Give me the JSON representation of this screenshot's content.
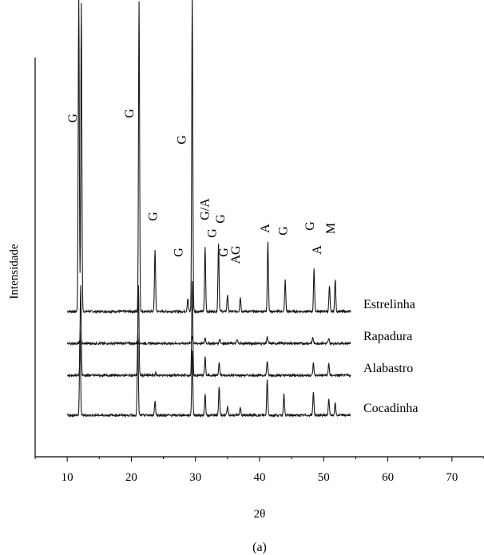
{
  "chart_data": {
    "type": "line",
    "caption": "(a)",
    "xlabel": "2θ",
    "ylabel": "Intensidade",
    "xlim": [
      5,
      75
    ],
    "xticks": [
      10,
      20,
      30,
      40,
      50,
      60,
      70
    ],
    "y_ticks_shown": false,
    "colors": {
      "line": "#1a1a1a",
      "axis": "#000000"
    },
    "series": [
      {
        "name": "Estrelinha",
        "offset": 260,
        "peaks": [
          [
            11.8,
            2.65
          ],
          [
            12.2,
            2.58
          ],
          [
            21.2,
            2.59
          ],
          [
            29.5,
            2.66
          ],
          [
            23.7,
            0.52
          ],
          [
            31.5,
            0.54
          ],
          [
            33.6,
            0.57
          ],
          [
            41.3,
            0.58
          ],
          [
            48.5,
            0.35
          ],
          [
            50.9,
            0.21
          ],
          [
            51.8,
            0.27
          ],
          [
            44.0,
            0.26
          ],
          [
            35.0,
            0.14
          ],
          [
            37.0,
            0.12
          ],
          [
            28.8,
            0.11
          ]
        ]
      },
      {
        "name": "Rapadura",
        "offset": 180,
        "peaks": [
          [
            12.0,
            0.02
          ],
          [
            21.0,
            0.03
          ],
          [
            29.5,
            0.06
          ],
          [
            31.5,
            0.05
          ],
          [
            33.8,
            0.04
          ],
          [
            36.5,
            0.03
          ],
          [
            41.2,
            0.05
          ],
          [
            48.3,
            0.05
          ],
          [
            50.8,
            0.04
          ]
        ]
      },
      {
        "name": "Alabastro",
        "offset": 100,
        "peaks": [
          [
            12.1,
            0.75
          ],
          [
            21.1,
            0.75
          ],
          [
            29.5,
            0.78
          ],
          [
            23.8,
            0.02
          ],
          [
            31.5,
            0.15
          ],
          [
            33.7,
            0.1
          ],
          [
            41.2,
            0.12
          ],
          [
            48.4,
            0.1
          ],
          [
            50.8,
            0.1
          ]
        ]
      },
      {
        "name": "Cocadinha",
        "offset": 0,
        "peaks": [
          [
            12.0,
            0.7
          ],
          [
            21.0,
            0.68
          ],
          [
            23.7,
            0.12
          ],
          [
            29.5,
            0.54
          ],
          [
            31.5,
            0.18
          ],
          [
            33.7,
            0.24
          ],
          [
            35.0,
            0.07
          ],
          [
            37.0,
            0.07
          ],
          [
            41.2,
            0.3
          ],
          [
            43.8,
            0.18
          ],
          [
            48.4,
            0.2
          ],
          [
            50.8,
            0.14
          ],
          [
            51.8,
            0.1
          ]
        ]
      }
    ],
    "annotations": [
      {
        "text": "G",
        "x": 11.5,
        "y": 620,
        "rotate": true
      },
      {
        "text": "G",
        "x": 20.3,
        "y": 630,
        "rotate": true
      },
      {
        "text": "G",
        "x": 28.5,
        "y": 575,
        "rotate": true
      },
      {
        "text": "G",
        "x": 24.0,
        "y": 415,
        "rotate": true
      },
      {
        "text": "G",
        "x": 28.0,
        "y": 340,
        "rotate": true
      },
      {
        "text": "G/A",
        "x": 32.1,
        "y": 430,
        "rotate": true
      },
      {
        "text": "G",
        "x": 34.5,
        "y": 410,
        "rotate": true
      },
      {
        "text": "G",
        "x": 33.2,
        "y": 380,
        "rotate": true
      },
      {
        "text": "G",
        "x": 35.0,
        "y": 340,
        "rotate": true
      },
      {
        "text": "AG",
        "x": 36.9,
        "y": 335,
        "rotate": true
      },
      {
        "text": "A",
        "x": 41.5,
        "y": 390,
        "rotate": true
      },
      {
        "text": "G",
        "x": 44.3,
        "y": 385,
        "rotate": true
      },
      {
        "text": "G",
        "x": 48.5,
        "y": 395,
        "rotate": true
      },
      {
        "text": "A",
        "x": 49.6,
        "y": 345,
        "rotate": true
      },
      {
        "text": "M",
        "x": 51.7,
        "y": 390,
        "rotate": true
      }
    ]
  }
}
